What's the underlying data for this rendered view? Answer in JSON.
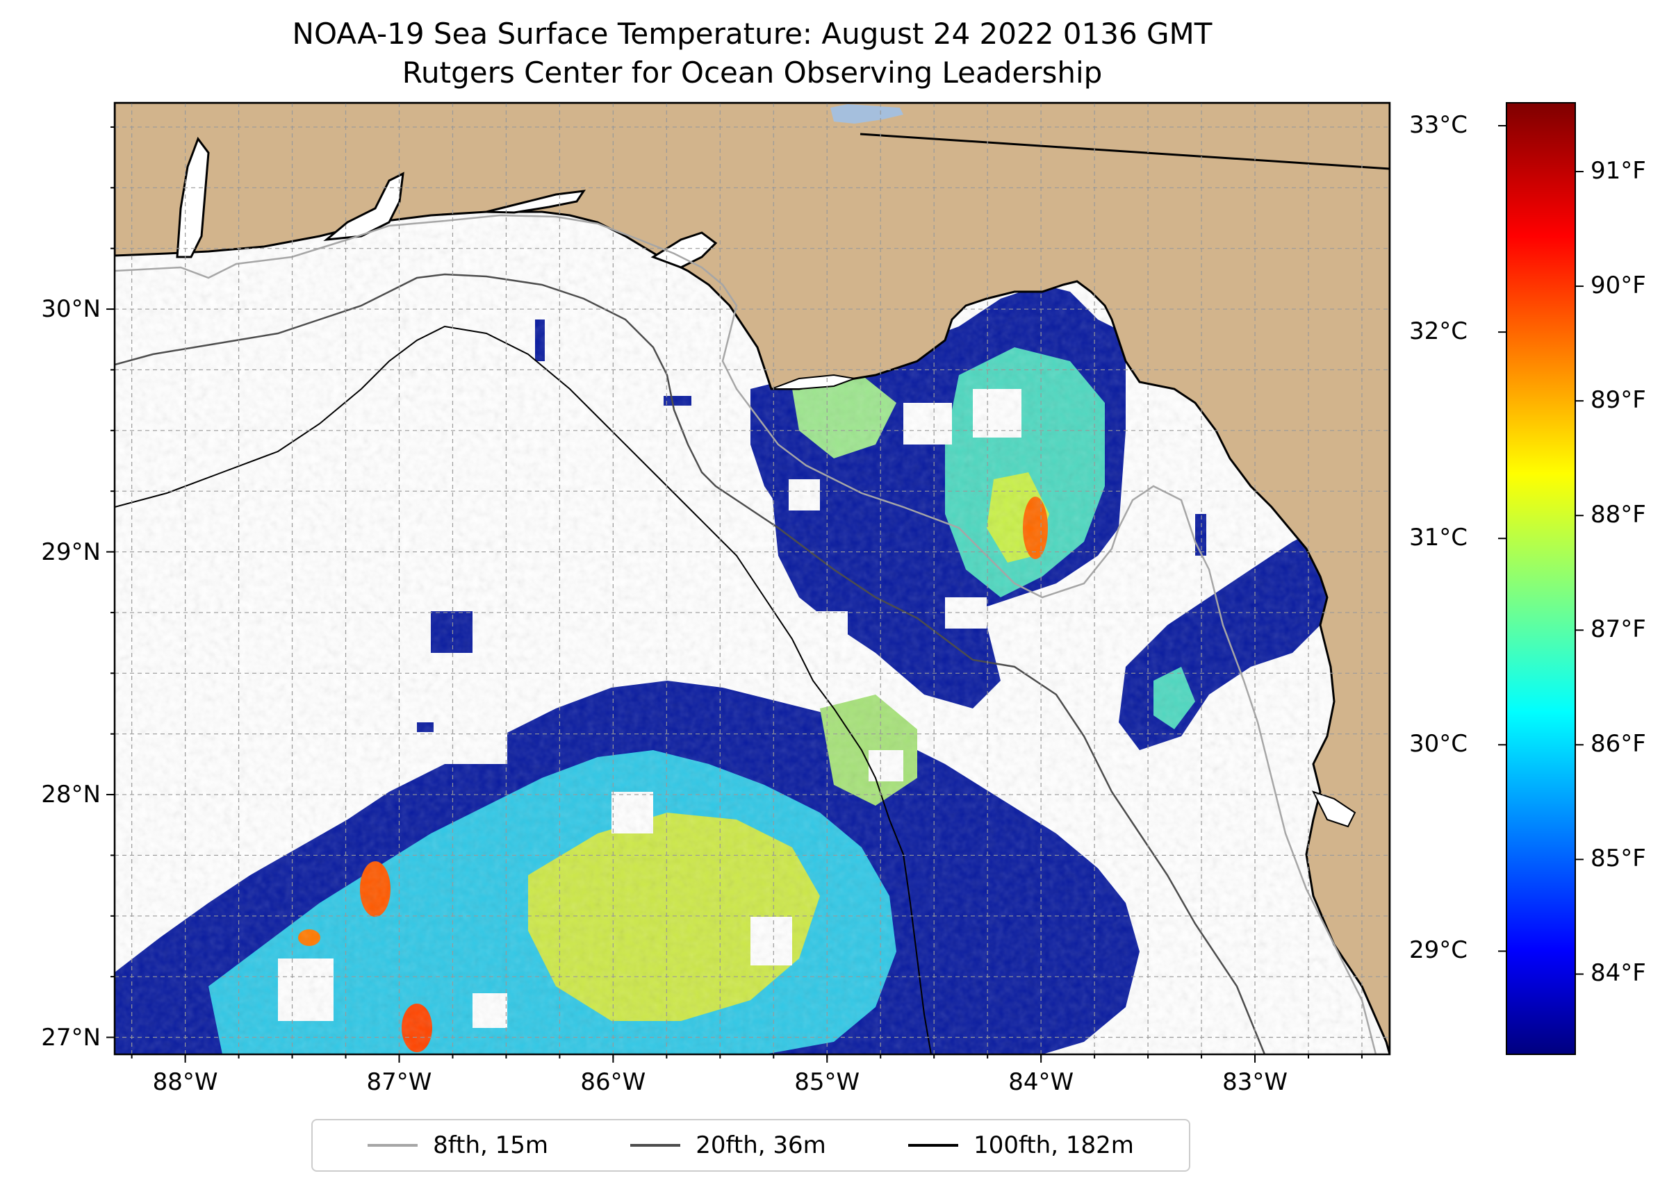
{
  "title_line_1": "NOAA-19 Sea Surface Temperature: August 24 2022 0136 GMT",
  "title_line_2": "Rutgers Center for Ocean Observing Leadership",
  "map": {
    "lon_range": [
      -88.33,
      -82.37
    ],
    "lat_range": [
      26.93,
      30.85
    ],
    "land_color": "#d2b48c",
    "lake_color": "#a5bfdd",
    "gridlines": "dashed",
    "lat_ticks": [
      {
        "value": 30,
        "label": "30°N"
      },
      {
        "value": 29,
        "label": "29°N"
      },
      {
        "value": 28,
        "label": "28°N"
      },
      {
        "value": 27,
        "label": "27°N"
      }
    ],
    "lon_ticks": [
      {
        "value": -88,
        "label": "88°W"
      },
      {
        "value": -87,
        "label": "87°W"
      },
      {
        "value": -86,
        "label": "86°W"
      },
      {
        "value": -85,
        "label": "85°W"
      },
      {
        "value": -84,
        "label": "84°W"
      },
      {
        "value": -83,
        "label": "83°W"
      }
    ]
  },
  "colorbar": {
    "colormap": "jet",
    "celsius_ticks": [
      {
        "value": 33,
        "label": "33°C"
      },
      {
        "value": 32,
        "label": "32°C"
      },
      {
        "value": 31,
        "label": "31°C"
      },
      {
        "value": 30,
        "label": "30°C"
      },
      {
        "value": 29,
        "label": "29°C"
      }
    ],
    "fahrenheit_ticks": [
      {
        "value": 91,
        "label": "91°F"
      },
      {
        "value": 90,
        "label": "90°F"
      },
      {
        "value": 89,
        "label": "89°F"
      },
      {
        "value": 88,
        "label": "88°F"
      },
      {
        "value": 87,
        "label": "87°F"
      },
      {
        "value": 86,
        "label": "86°F"
      },
      {
        "value": 85,
        "label": "85°F"
      },
      {
        "value": 84,
        "label": "84°F"
      }
    ],
    "range_f": [
      83.3,
      91.6
    ]
  },
  "legend": {
    "items": [
      {
        "label": "8fth, 15m",
        "color": "#a6a6a6"
      },
      {
        "label": "20fth, 36m",
        "color": "#4d4d4d"
      },
      {
        "label": "100fth, 182m",
        "color": "#000000"
      }
    ]
  }
}
